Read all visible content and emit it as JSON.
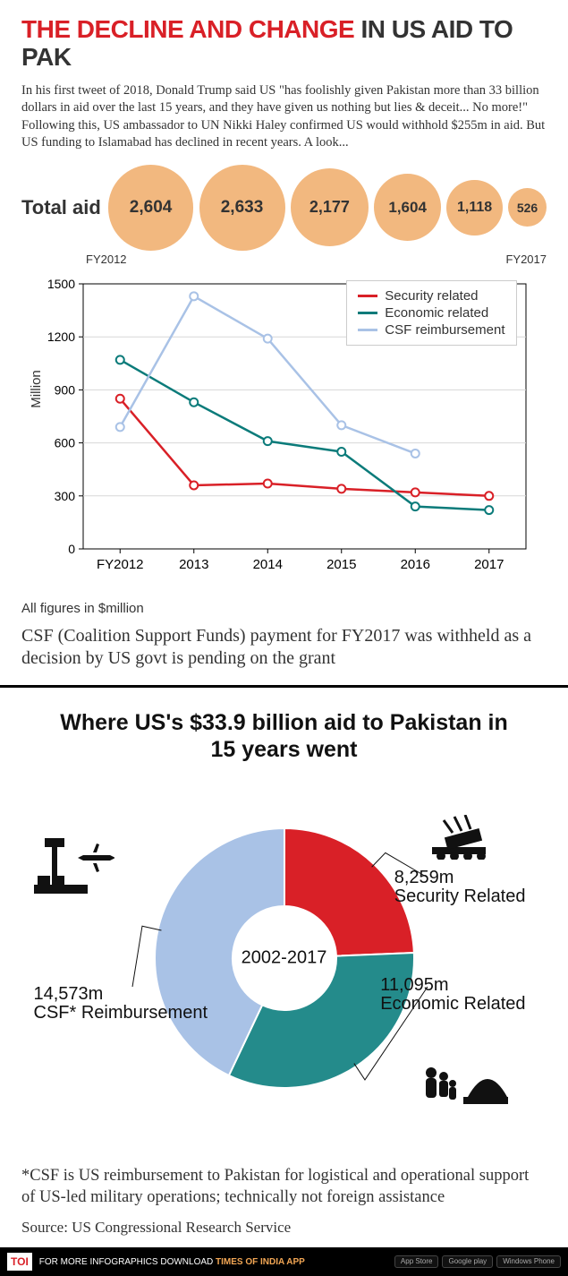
{
  "title": {
    "red": "THE DECLINE AND CHANGE",
    "black": " IN US AID TO PAK"
  },
  "intro": "In his first tweet of 2018, Donald Trump said US \"has foolishly given Pakistan more than 33 billion dollars in aid over the last 15 years, and they have given us nothing but lies & deceit... No more!\" Following this, US ambassador to UN Nikki Haley confirmed US would withhold $255m in aid. But US funding to Islamabad has declined in recent years. A look...",
  "total_aid": {
    "label": "Total aid",
    "years": [
      "FY2012",
      "",
      "",
      "",
      "",
      "FY2017"
    ],
    "values": [
      2604,
      2633,
      2177,
      1604,
      1118,
      526
    ],
    "display": [
      "2,604",
      "2,633",
      "2,177",
      "1,604",
      "1,118",
      "526"
    ],
    "bubble_color": "#f2b87f",
    "bubble_font_sizes": [
      19,
      19,
      18,
      17,
      16,
      14
    ],
    "max_diameter": 96
  },
  "line_chart": {
    "type": "line",
    "x_categories": [
      "FY2012",
      "2013",
      "2014",
      "2015",
      "2016",
      "2017"
    ],
    "ylim": [
      0,
      1500
    ],
    "ytick_step": 300,
    "ylabel": "Million",
    "series": [
      {
        "name": "Security related",
        "color": "#d92027",
        "width": 2.5,
        "marker": "o",
        "values": [
          850,
          360,
          370,
          340,
          320,
          300
        ]
      },
      {
        "name": "Economic related",
        "color": "#0b7b7a",
        "width": 2.5,
        "marker": "o",
        "values": [
          1070,
          830,
          610,
          550,
          240,
          220
        ]
      },
      {
        "name": "CSF reimbursement",
        "color": "#a9c2e6",
        "width": 2.5,
        "marker": "o",
        "values": [
          690,
          1430,
          1190,
          700,
          540,
          null
        ]
      }
    ],
    "grid_color": "#d7d7d7",
    "background": "#ffffff"
  },
  "figures_note": "All figures in $million",
  "csf_note": "CSF (Coalition Support Funds) payment for FY2017 was withheld as a decision by US govt is pending on the grant",
  "donut": {
    "title": "Where US's $33.9 billion aid to Pakistan in 15 years went",
    "center_label": "2002-2017",
    "slices": [
      {
        "key": "security",
        "label_value": "8,259m",
        "label_name": "Security Related",
        "value": 8259,
        "color": "#d92027"
      },
      {
        "key": "economic",
        "label_value": "11,095m",
        "label_name": "Economic Related",
        "value": 11095,
        "color": "#248b8b"
      },
      {
        "key": "csf",
        "label_value": "14,573m",
        "label_name": "CSF* Reimbursement",
        "value": 14573,
        "color": "#a9c2e6"
      }
    ],
    "inner_ratio": 0.4
  },
  "csf_footnote": "*CSF is US reimbursement to Pakistan for logistical and operational support of US-led military operations; technically not foreign assistance",
  "source": "Source: US Congressional Research Service",
  "footer": {
    "badge": "TOI",
    "text_white": "FOR MORE  INFOGRAPHICS DOWNLOAD ",
    "text_orange": "TIMES OF INDIA  APP",
    "apps": [
      "App Store",
      "Google play",
      "Windows Phone"
    ]
  }
}
